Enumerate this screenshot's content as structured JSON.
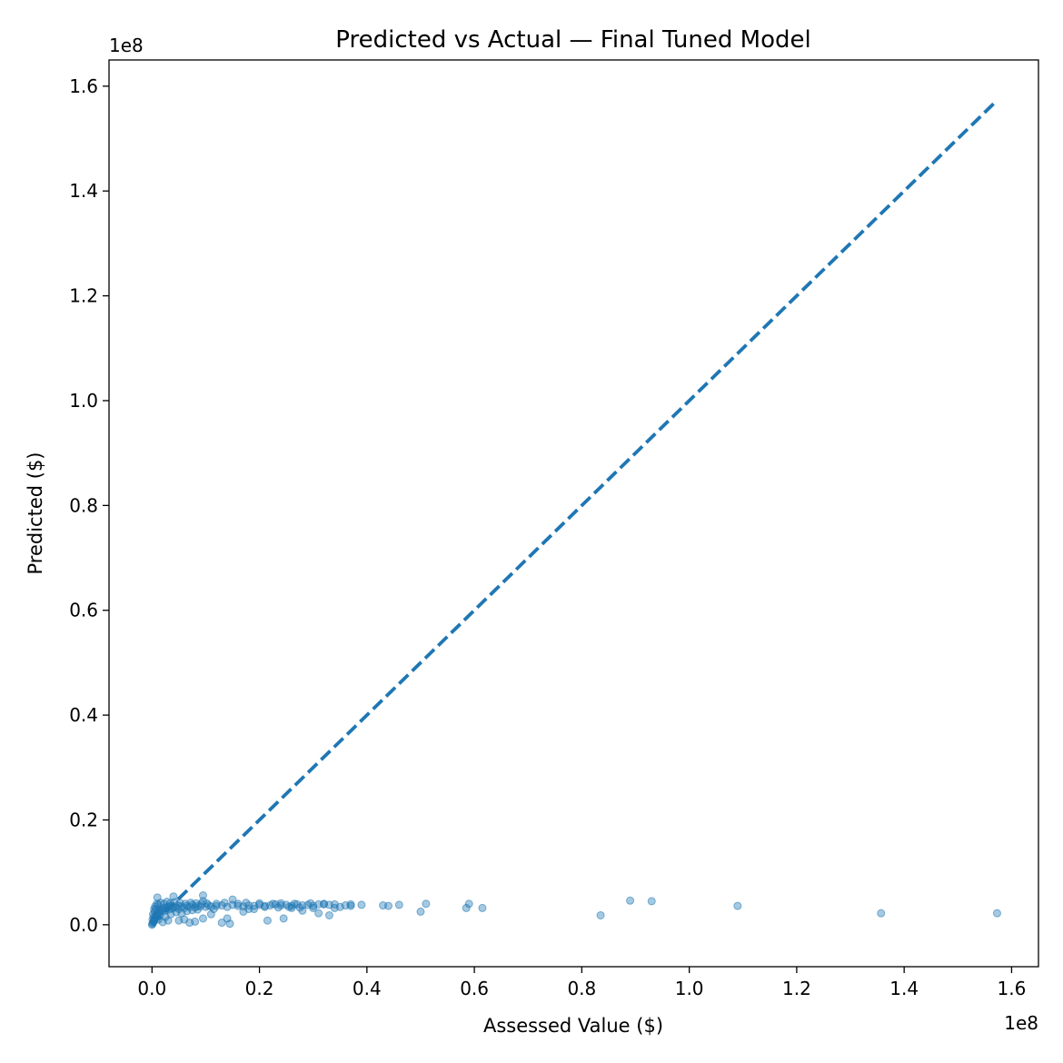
{
  "chart_data": {
    "type": "scatter",
    "title": "Predicted vs Actual — Final Tuned Model",
    "xlabel": "Assessed Value ($)",
    "ylabel": "Predicted ($)",
    "x_offset_text": "1e8",
    "y_offset_text": "1e8",
    "xlim": [
      -0.08,
      1.65
    ],
    "ylim": [
      -0.08,
      1.65
    ],
    "x_ticks": [
      0.0,
      0.2,
      0.4,
      0.6,
      0.8,
      1.0,
      1.2,
      1.4,
      1.6
    ],
    "x_tick_labels": [
      "0.0",
      "0.2",
      "0.4",
      "0.6",
      "0.8",
      "1.0",
      "1.2",
      "1.4",
      "1.6"
    ],
    "y_ticks": [
      0.0,
      0.2,
      0.4,
      0.6,
      0.8,
      1.0,
      1.2,
      1.4,
      1.6
    ],
    "y_tick_labels": [
      "0.0",
      "0.2",
      "0.4",
      "0.6",
      "0.8",
      "1.0",
      "1.2",
      "1.4",
      "1.6"
    ],
    "grid": false,
    "legend": "none",
    "colors": {
      "points": "#1f77b4",
      "reference_line": "#1f77b4"
    },
    "reference_line": {
      "style": "dashed",
      "x": [
        0.0,
        1.573
      ],
      "y": [
        0.0,
        1.573
      ]
    },
    "points": [
      [
        0.001,
        0.002
      ],
      [
        0.002,
        0.004
      ],
      [
        0.003,
        0.006
      ],
      [
        0.004,
        0.008
      ],
      [
        0.005,
        0.01
      ],
      [
        0.006,
        0.012
      ],
      [
        0.003,
        0.015
      ],
      [
        0.007,
        0.016
      ],
      [
        0.008,
        0.018
      ],
      [
        0.01,
        0.02
      ],
      [
        0.012,
        0.022
      ],
      [
        0.014,
        0.024
      ],
      [
        0.015,
        0.028
      ],
      [
        0.018,
        0.026
      ],
      [
        0.02,
        0.03
      ],
      [
        0.022,
        0.032
      ],
      [
        0.025,
        0.027
      ],
      [
        0.028,
        0.033
      ],
      [
        0.03,
        0.035
      ],
      [
        0.032,
        0.029
      ],
      [
        0.035,
        0.036
      ],
      [
        0.038,
        0.031
      ],
      [
        0.04,
        0.034
      ],
      [
        0.045,
        0.033
      ],
      [
        0.048,
        0.037
      ],
      [
        0.05,
        0.03
      ],
      [
        0.055,
        0.035
      ],
      [
        0.06,
        0.032
      ],
      [
        0.065,
        0.036
      ],
      [
        0.07,
        0.034
      ],
      [
        0.075,
        0.038
      ],
      [
        0.08,
        0.033
      ],
      [
        0.085,
        0.036
      ],
      [
        0.09,
        0.035
      ],
      [
        0.095,
        0.045
      ],
      [
        0.1,
        0.034
      ],
      [
        0.105,
        0.037
      ],
      [
        0.11,
        0.035
      ],
      [
        0.115,
        0.03
      ],
      [
        0.12,
        0.036
      ],
      [
        0.13,
        0.037
      ],
      [
        0.14,
        0.034
      ],
      [
        0.15,
        0.038
      ],
      [
        0.16,
        0.036
      ],
      [
        0.17,
        0.035
      ],
      [
        0.18,
        0.037
      ],
      [
        0.19,
        0.036
      ],
      [
        0.2,
        0.038
      ],
      [
        0.21,
        0.036
      ],
      [
        0.22,
        0.037
      ],
      [
        0.23,
        0.039
      ],
      [
        0.24,
        0.037
      ],
      [
        0.25,
        0.038
      ],
      [
        0.26,
        0.036
      ],
      [
        0.27,
        0.039
      ],
      [
        0.28,
        0.037
      ],
      [
        0.29,
        0.038
      ],
      [
        0.3,
        0.036
      ],
      [
        0.31,
        0.039
      ],
      [
        0.32,
        0.04
      ],
      [
        0.33,
        0.038
      ],
      [
        0.34,
        0.039
      ],
      [
        0.36,
        0.037
      ],
      [
        0.37,
        0.039
      ],
      [
        0.39,
        0.038
      ],
      [
        0.43,
        0.037
      ],
      [
        0.44,
        0.036
      ],
      [
        0.46,
        0.038
      ],
      [
        0.51,
        0.04
      ],
      [
        0.59,
        0.04
      ],
      [
        0.615,
        0.032
      ],
      [
        0.89,
        0.046
      ],
      [
        0.93,
        0.045
      ],
      [
        1.09,
        0.036
      ],
      [
        0.01,
        0.052
      ],
      [
        0.04,
        0.054
      ],
      [
        0.095,
        0.056
      ],
      [
        0.15,
        0.048
      ],
      [
        0.05,
        0.008
      ],
      [
        0.07,
        0.004
      ],
      [
        0.08,
        0.006
      ],
      [
        0.13,
        0.004
      ],
      [
        0.145,
        0.002
      ],
      [
        0.14,
        0.012
      ],
      [
        0.215,
        0.008
      ],
      [
        0.245,
        0.012
      ],
      [
        0.31,
        0.022
      ],
      [
        0.33,
        0.018
      ],
      [
        0.5,
        0.025
      ],
      [
        0.585,
        0.032
      ],
      [
        0.835,
        0.018
      ],
      [
        1.357,
        0.022
      ],
      [
        1.573,
        0.022
      ],
      [
        0.02,
        0.005
      ],
      [
        0.03,
        0.008
      ],
      [
        0.012,
        0.01
      ],
      [
        0.06,
        0.01
      ],
      [
        0.095,
        0.012
      ],
      [
        0.11,
        0.02
      ],
      [
        0.17,
        0.025
      ],
      [
        0.19,
        0.03
      ],
      [
        0.26,
        0.032
      ],
      [
        0.28,
        0.027
      ],
      [
        0.35,
        0.034
      ],
      [
        0.005,
        0.025
      ],
      [
        0.008,
        0.03
      ],
      [
        0.015,
        0.018
      ],
      [
        0.025,
        0.015
      ],
      [
        0.035,
        0.02
      ],
      [
        0.045,
        0.024
      ],
      [
        0.055,
        0.022
      ],
      [
        0.065,
        0.026
      ],
      [
        0.075,
        0.028
      ],
      [
        0.085,
        0.029
      ],
      [
        0.0,
        0.0
      ],
      [
        0.001,
        0.01
      ],
      [
        0.002,
        0.02
      ],
      [
        0.004,
        0.03
      ],
      [
        0.006,
        0.035
      ],
      [
        0.009,
        0.04
      ],
      [
        0.012,
        0.038
      ],
      [
        0.016,
        0.042
      ],
      [
        0.022,
        0.04
      ],
      [
        0.028,
        0.044
      ],
      [
        0.034,
        0.041
      ],
      [
        0.042,
        0.043
      ],
      [
        0.052,
        0.042
      ],
      [
        0.062,
        0.04
      ],
      [
        0.072,
        0.042
      ],
      [
        0.082,
        0.041
      ],
      [
        0.092,
        0.04
      ],
      [
        0.102,
        0.041
      ],
      [
        0.12,
        0.04
      ],
      [
        0.135,
        0.042
      ],
      [
        0.16,
        0.04
      ],
      [
        0.175,
        0.042
      ],
      [
        0.2,
        0.041
      ],
      [
        0.225,
        0.04
      ],
      [
        0.24,
        0.041
      ],
      [
        0.265,
        0.04
      ],
      [
        0.295,
        0.041
      ],
      [
        0.32,
        0.039
      ],
      [
        0.18,
        0.03
      ],
      [
        0.21,
        0.034
      ],
      [
        0.235,
        0.033
      ],
      [
        0.255,
        0.034
      ],
      [
        0.275,
        0.033
      ],
      [
        0.3,
        0.032
      ],
      [
        0.34,
        0.032
      ],
      [
        0.37,
        0.036
      ]
    ]
  }
}
